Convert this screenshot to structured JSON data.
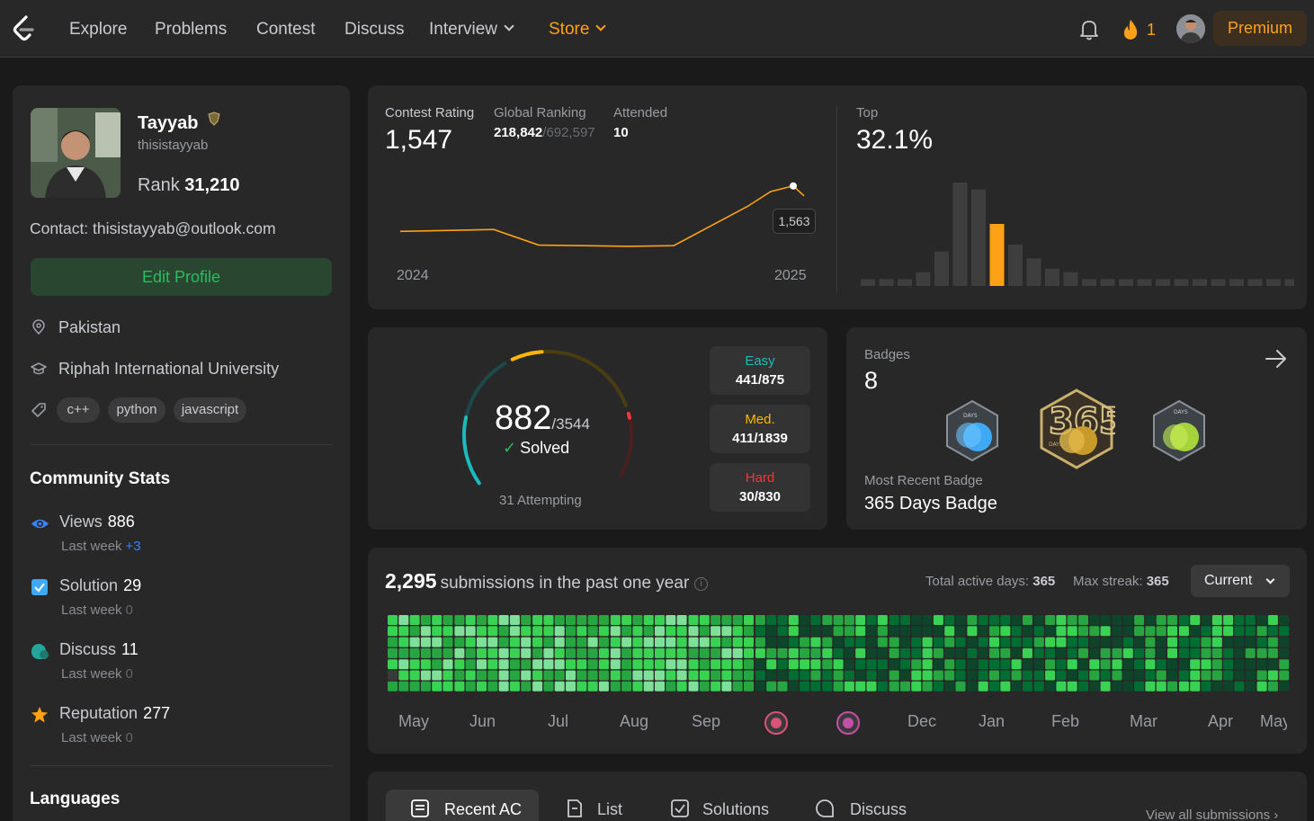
{
  "nav": {
    "items": [
      "Explore",
      "Problems",
      "Contest",
      "Discuss",
      "Interview",
      "Store"
    ],
    "streak": "1",
    "premium": "Premium"
  },
  "profile": {
    "name": "Tayyab",
    "handle": "thisistayyab",
    "rank_label": "Rank",
    "rank": "31,210",
    "contact": "Contact: thisistayyab@outlook.com",
    "edit": "Edit Profile",
    "location": "Pakistan",
    "university": "Riphah International University",
    "skills": [
      "c++",
      "python",
      "javascript"
    ]
  },
  "community": {
    "title": "Community Stats",
    "last_week": "Last week",
    "stats": [
      {
        "label": "Views",
        "value": "886",
        "delta": "+3"
      },
      {
        "label": "Solution",
        "value": "29",
        "delta": "0"
      },
      {
        "label": "Discuss",
        "value": "11",
        "delta": "0"
      },
      {
        "label": "Reputation",
        "value": "277",
        "delta": "0"
      }
    ]
  },
  "languages": {
    "title": "Languages"
  },
  "contest": {
    "rating_label": "Contest Rating",
    "rating": "1,547",
    "ranking_label": "Global Ranking",
    "ranking": "218,842",
    "ranking_total": "/692,597",
    "attended_label": "Attended",
    "attended": "10",
    "year_start": "2024",
    "year_end": "2025",
    "tooltip": "1,563",
    "top_label": "Top",
    "top": "32.1%",
    "accent": "#ffa116"
  },
  "chart_data": [
    {
      "type": "line",
      "series": [
        {
          "values": [
            1490,
            1493,
            1468,
            1467,
            1466,
            1467,
            1530,
            1554,
            1563,
            1547
          ]
        }
      ],
      "x": [
        "2024",
        "",
        "",
        "",
        "",
        "",
        "",
        "",
        "",
        "2025"
      ]
    },
    {
      "type": "bar",
      "values": [
        2,
        2,
        2,
        4,
        10,
        30,
        28,
        18,
        12,
        8,
        5,
        4,
        2,
        2,
        2,
        2,
        2,
        2,
        2,
        2,
        2,
        2,
        2,
        2
      ],
      "highlight_index": 7
    }
  ],
  "solved": {
    "count": "882",
    "total": "/3544",
    "label": "Solved",
    "attempting": "31 Attempting",
    "easy_label": "Easy",
    "easy": "441/875",
    "easy_color": "#1cbaba",
    "med_label": "Med.",
    "med": "411/1839",
    "med_color": "#ffb700",
    "hard_label": "Hard",
    "hard": "30/830",
    "hard_color": "#f63737",
    "easy_fraction": 0.504,
    "med_fraction": 0.2235,
    "hard_fraction": 0.0361
  },
  "badges": {
    "title": "Badges",
    "count": "8",
    "recent_label": "Most Recent Badge",
    "recent": "365 Days Badge"
  },
  "submissions": {
    "count": "2,295",
    "title": "submissions in the past one year",
    "active_label": "Total active days:",
    "active": "365",
    "streak_label": "Max streak:",
    "streak": "365",
    "dropdown": "Current",
    "months": [
      "May",
      "Jun",
      "Jul",
      "Aug",
      "Sep",
      "Dec",
      "Jan",
      "Feb",
      "Mar",
      "Apr",
      "May"
    ]
  },
  "tabs": {
    "items": [
      "Recent AC",
      "List",
      "Solutions",
      "Discuss"
    ],
    "view_all": "View all submissions"
  }
}
